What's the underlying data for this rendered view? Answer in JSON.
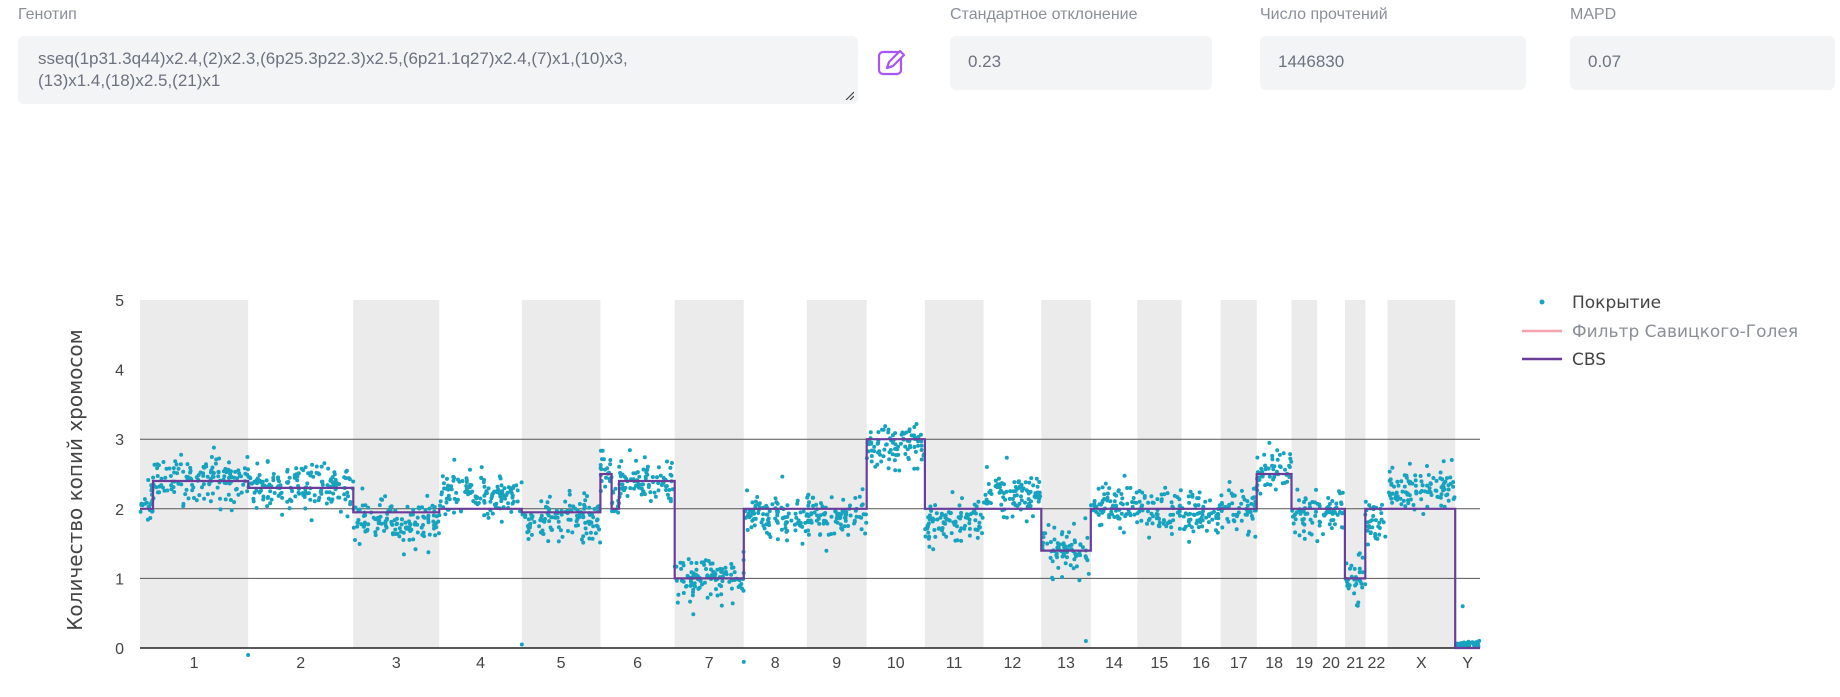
{
  "fields": {
    "genotype": {
      "label": "Генотип",
      "value_line1": "sseq(1p31.3q44)x2.4,(2)x2.3,(6p25.3p22.3)x2.5,(6p21.1q27)x2.4,(7)x1,(10)x3,",
      "value_line2": "(13)x1.4,(18)x2.5,(21)x1"
    },
    "std_dev": {
      "label": "Стандартное отклонение",
      "value": "0.23"
    },
    "reads": {
      "label": "Число прочтений",
      "value": "1446830"
    },
    "mapd": {
      "label": "MAPD",
      "value": "0.07"
    },
    "edit_icon": "pencil-square-icon"
  },
  "colors": {
    "coverage": "#17a3bf",
    "savitzky_golay": "#f4a3ae",
    "cbs": "#6a3d9a",
    "band": "#ebebeb",
    "edit_icon": "#a855f7"
  },
  "chart_data": {
    "type": "scatter",
    "ylabel": "Количество копий хромосом",
    "ylim": [
      0,
      5
    ],
    "yticks": [
      0,
      1,
      2,
      3,
      4,
      5
    ],
    "gridlines_y": [
      1,
      2,
      3
    ],
    "legend": {
      "placement": "right",
      "entries": [
        "Покрытие",
        "Фильтр Савицкого-Голея",
        "CBS"
      ]
    },
    "chromosomes": [
      {
        "name": "1",
        "size": 249,
        "mean": 2.35,
        "cbs": [
          [
            0,
            0.12,
            2.0
          ],
          [
            0.12,
            1,
            2.4
          ]
        ]
      },
      {
        "name": "2",
        "size": 242,
        "mean": 2.3,
        "cbs": [
          [
            0,
            1,
            2.3
          ]
        ]
      },
      {
        "name": "3",
        "size": 198,
        "mean": 1.8,
        "cbs": [
          [
            0,
            1,
            1.95
          ]
        ]
      },
      {
        "name": "4",
        "size": 190,
        "mean": 2.2,
        "cbs": [
          [
            0,
            1,
            2.0
          ]
        ]
      },
      {
        "name": "5",
        "size": 181,
        "mean": 1.85,
        "cbs": [
          [
            0,
            1,
            1.95
          ]
        ]
      },
      {
        "name": "6",
        "size": 171,
        "mean": 2.4,
        "cbs": [
          [
            0,
            0.15,
            2.5
          ],
          [
            0.15,
            0.25,
            2.0
          ],
          [
            0.25,
            1,
            2.4
          ]
        ]
      },
      {
        "name": "7",
        "size": 159,
        "mean": 1.0,
        "cbs": [
          [
            0,
            1,
            1.0
          ]
        ]
      },
      {
        "name": "8",
        "size": 145,
        "mean": 1.9,
        "cbs": [
          [
            0,
            1,
            2.0
          ]
        ]
      },
      {
        "name": "9",
        "size": 138,
        "mean": 1.9,
        "cbs": [
          [
            0,
            1,
            2.0
          ]
        ]
      },
      {
        "name": "10",
        "size": 134,
        "mean": 2.9,
        "cbs": [
          [
            0,
            1,
            3.0
          ]
        ]
      },
      {
        "name": "11",
        "size": 135,
        "mean": 1.8,
        "cbs": [
          [
            0,
            1,
            2.0
          ]
        ]
      },
      {
        "name": "12",
        "size": 133,
        "mean": 2.2,
        "cbs": [
          [
            0,
            1,
            2.0
          ]
        ]
      },
      {
        "name": "13",
        "size": 114,
        "mean": 1.4,
        "cbs": [
          [
            0,
            1,
            1.4
          ]
        ]
      },
      {
        "name": "14",
        "size": 107,
        "mean": 2.0,
        "cbs": [
          [
            0,
            1,
            2.0
          ]
        ]
      },
      {
        "name": "15",
        "size": 102,
        "mean": 1.95,
        "cbs": [
          [
            0,
            1,
            2.0
          ]
        ]
      },
      {
        "name": "16",
        "size": 90,
        "mean": 1.95,
        "cbs": [
          [
            0,
            1,
            2.0
          ]
        ]
      },
      {
        "name": "17",
        "size": 83,
        "mean": 1.95,
        "cbs": [
          [
            0,
            1,
            2.0
          ]
        ]
      },
      {
        "name": "18",
        "size": 80,
        "mean": 2.5,
        "cbs": [
          [
            0,
            1,
            2.5
          ]
        ]
      },
      {
        "name": "19",
        "size": 59,
        "mean": 1.95,
        "cbs": [
          [
            0,
            1,
            2.0
          ]
        ]
      },
      {
        "name": "20",
        "size": 64,
        "mean": 1.95,
        "cbs": [
          [
            0,
            1,
            2.0
          ]
        ]
      },
      {
        "name": "21",
        "size": 47,
        "mean": 1.0,
        "cbs": [
          [
            0,
            1,
            1.0
          ]
        ]
      },
      {
        "name": "22",
        "size": 51,
        "mean": 1.8,
        "cbs": [
          [
            0,
            1,
            2.0
          ]
        ]
      },
      {
        "name": "X",
        "size": 156,
        "mean": 2.3,
        "cbs": [
          [
            0,
            1,
            2.0
          ]
        ]
      },
      {
        "name": "Y",
        "size": 57,
        "mean": 0.05,
        "cbs": [
          [
            0,
            1,
            0.0
          ]
        ]
      }
    ],
    "outliers": [
      {
        "chr": "2",
        "pos": 0.0,
        "y": -0.1
      },
      {
        "chr": "5",
        "pos": 0.0,
        "y": 0.05
      },
      {
        "chr": "8",
        "pos": 0.0,
        "y": -0.2
      },
      {
        "chr": "13",
        "pos": 0.9,
        "y": 0.1
      },
      {
        "chr": "Y",
        "pos": 0.3,
        "y": 0.6
      }
    ]
  }
}
